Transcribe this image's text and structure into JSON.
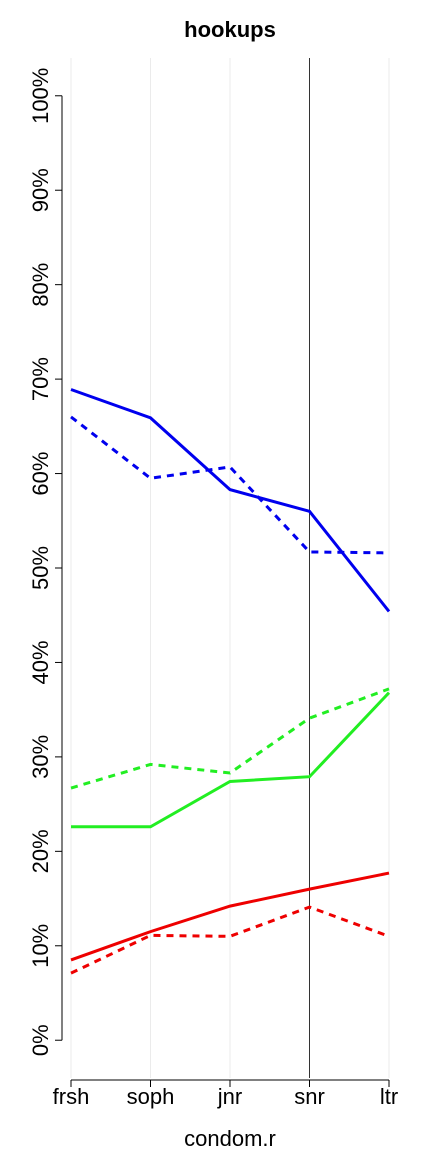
{
  "chart_data": {
    "type": "line",
    "title": "hookups",
    "x_label": "condom.r",
    "categories": [
      "frsh",
      "soph",
      "jnr",
      "snr",
      "ltr"
    ],
    "series": [
      {
        "color": "#0000ee",
        "dashed": false,
        "values": [
          68.9,
          65.9,
          58.3,
          56.0,
          45.4
        ]
      },
      {
        "color": "#0000ee",
        "dashed": true,
        "values": [
          66.0,
          59.5,
          60.7,
          51.7,
          51.6
        ]
      },
      {
        "color": "#22ee22",
        "dashed": false,
        "values": [
          22.6,
          22.6,
          27.4,
          27.9,
          36.8
        ]
      },
      {
        "color": "#22ee22",
        "dashed": true,
        "values": [
          26.7,
          29.2,
          28.3,
          34.1,
          37.2
        ]
      },
      {
        "color": "#ee0000",
        "dashed": false,
        "values": [
          8.5,
          11.5,
          14.2,
          16.0,
          17.7
        ]
      },
      {
        "color": "#ee0000",
        "dashed": true,
        "values": [
          7.1,
          11.1,
          11.0,
          14.1,
          11.0
        ]
      }
    ],
    "ylim": [
      -4,
      104
    ],
    "yticks": [
      {
        "value": 0,
        "label": "0%"
      },
      {
        "value": 10,
        "label": "10%"
      },
      {
        "value": 20,
        "label": "20%"
      },
      {
        "value": 30,
        "label": "30%"
      },
      {
        "value": 40,
        "label": "40%"
      },
      {
        "value": 50,
        "label": "50%"
      },
      {
        "value": 60,
        "label": "60%"
      },
      {
        "value": 70,
        "label": "70%"
      },
      {
        "value": 80,
        "label": "80%"
      },
      {
        "value": 90,
        "label": "90%"
      },
      {
        "value": 100,
        "label": "100%"
      }
    ],
    "grid": true,
    "vline": "snr"
  }
}
